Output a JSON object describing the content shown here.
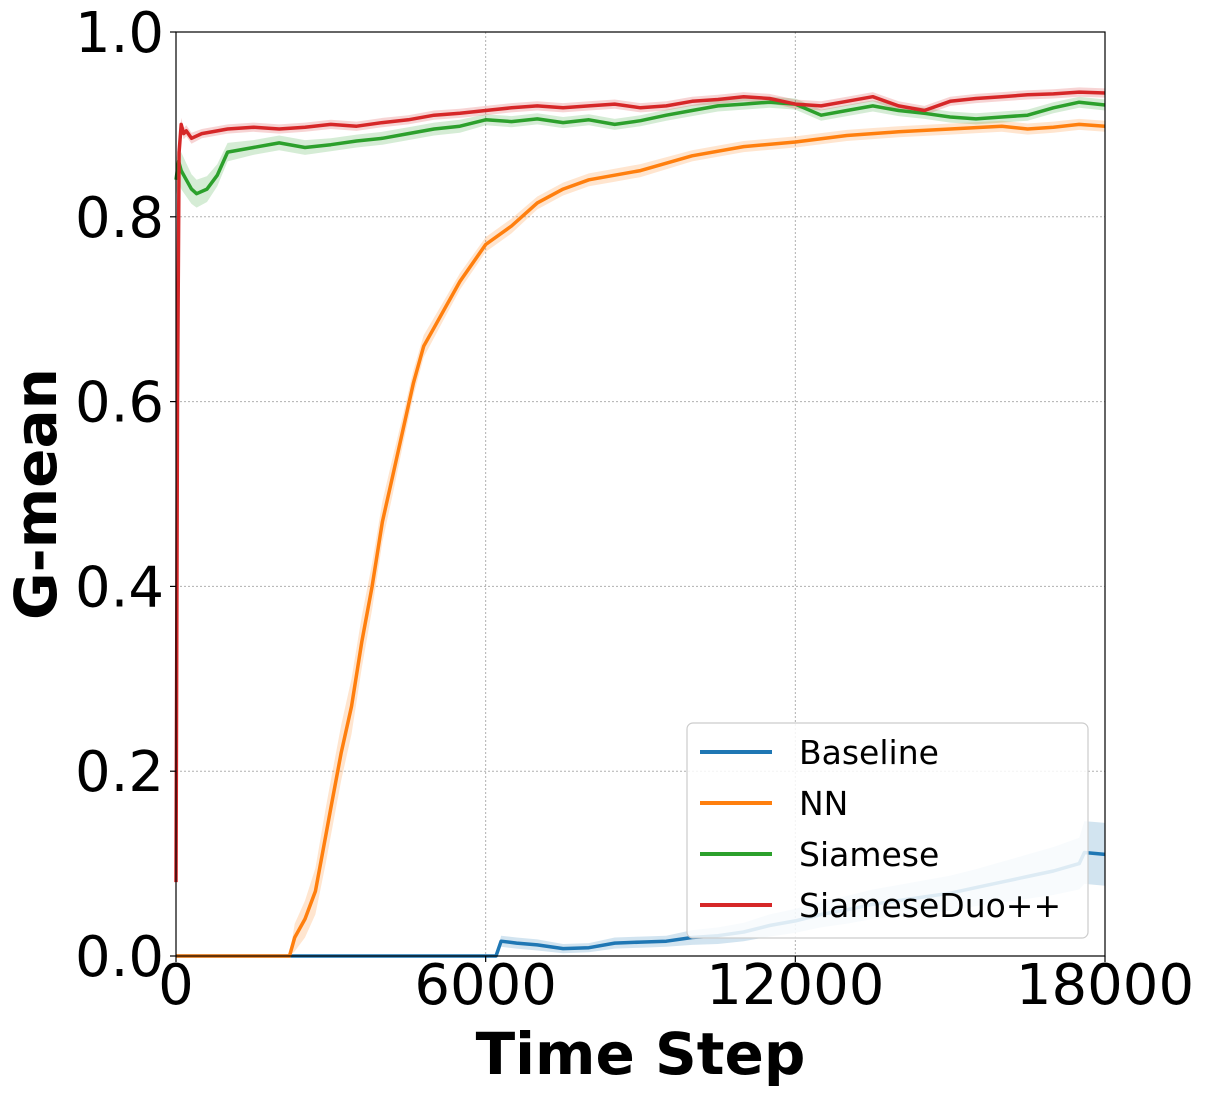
{
  "chart_data": {
    "type": "line",
    "xlabel": "Time Step",
    "ylabel": "G-mean",
    "xlim": [
      0,
      18000
    ],
    "ylim": [
      0.0,
      1.0
    ],
    "xticks": [
      0,
      6000,
      12000,
      18000
    ],
    "xtick_labels": [
      "0",
      "6000",
      "12000",
      "18000"
    ],
    "yticks": [
      0.0,
      0.2,
      0.4,
      0.6,
      0.8,
      1.0
    ],
    "ytick_labels": [
      "0.0",
      "0.2",
      "0.4",
      "0.6",
      "0.8",
      "1.0"
    ],
    "grid": true,
    "legend_position": "lower-right",
    "series": [
      {
        "name": "Baseline",
        "color": "#1f77b4",
        "x": [
          0,
          6200,
          6300,
          6600,
          7000,
          7500,
          8000,
          8500,
          9000,
          9500,
          10000,
          10500,
          11000,
          11500,
          12000,
          12500,
          13000,
          13500,
          14000,
          14500,
          15000,
          15500,
          16000,
          16500,
          17000,
          17500,
          17600,
          18000
        ],
        "y": [
          0.0,
          0.0,
          0.016,
          0.014,
          0.012,
          0.008,
          0.009,
          0.014,
          0.015,
          0.016,
          0.02,
          0.022,
          0.026,
          0.033,
          0.038,
          0.045,
          0.05,
          0.056,
          0.06,
          0.064,
          0.068,
          0.074,
          0.08,
          0.086,
          0.092,
          0.1,
          0.112,
          0.11
        ],
        "band": [
          0.0,
          0.0,
          0.006,
          0.006,
          0.006,
          0.005,
          0.005,
          0.006,
          0.006,
          0.006,
          0.008,
          0.009,
          0.01,
          0.012,
          0.013,
          0.014,
          0.015,
          0.016,
          0.017,
          0.018,
          0.019,
          0.02,
          0.022,
          0.024,
          0.026,
          0.028,
          0.034,
          0.034
        ]
      },
      {
        "name": "NN",
        "color": "#ff7f0e",
        "x": [
          0,
          2200,
          2300,
          2500,
          2700,
          2900,
          3000,
          3200,
          3400,
          3600,
          3800,
          4000,
          4200,
          4400,
          4600,
          4800,
          5000,
          5200,
          5500,
          6000,
          6500,
          7000,
          7500,
          8000,
          8500,
          9000,
          10000,
          11000,
          12000,
          13000,
          14000,
          15000,
          16000,
          16500,
          17000,
          17500,
          18000
        ],
        "y": [
          0.0,
          0.0,
          0.02,
          0.04,
          0.07,
          0.13,
          0.16,
          0.22,
          0.27,
          0.34,
          0.4,
          0.47,
          0.52,
          0.57,
          0.62,
          0.66,
          0.68,
          0.7,
          0.73,
          0.77,
          0.79,
          0.815,
          0.83,
          0.84,
          0.845,
          0.85,
          0.866,
          0.876,
          0.881,
          0.888,
          0.892,
          0.895,
          0.898,
          0.895,
          0.897,
          0.9,
          0.898
        ],
        "band": [
          0.0,
          0.0,
          0.015,
          0.02,
          0.025,
          0.03,
          0.03,
          0.03,
          0.03,
          0.028,
          0.025,
          0.022,
          0.02,
          0.016,
          0.014,
          0.012,
          0.011,
          0.01,
          0.009,
          0.008,
          0.008,
          0.007,
          0.007,
          0.007,
          0.007,
          0.007,
          0.006,
          0.006,
          0.006,
          0.006,
          0.006,
          0.006,
          0.006,
          0.006,
          0.006,
          0.006,
          0.006
        ]
      },
      {
        "name": "Siamese",
        "color": "#2ca02c",
        "x": [
          0,
          50,
          100,
          200,
          300,
          400,
          600,
          800,
          1000,
          1500,
          2000,
          2500,
          3000,
          3500,
          4000,
          4500,
          5000,
          5500,
          6000,
          6500,
          7000,
          7500,
          8000,
          8500,
          9000,
          9500,
          10000,
          10500,
          11000,
          11500,
          12000,
          12500,
          13000,
          13500,
          14000,
          14500,
          15000,
          15500,
          16000,
          16500,
          17000,
          17500,
          18000
        ],
        "y": [
          0.84,
          0.86,
          0.85,
          0.84,
          0.83,
          0.825,
          0.83,
          0.845,
          0.87,
          0.875,
          0.88,
          0.875,
          0.878,
          0.882,
          0.885,
          0.89,
          0.895,
          0.898,
          0.905,
          0.903,
          0.906,
          0.902,
          0.905,
          0.9,
          0.904,
          0.91,
          0.915,
          0.92,
          0.922,
          0.924,
          0.922,
          0.91,
          0.915,
          0.92,
          0.915,
          0.912,
          0.908,
          0.906,
          0.908,
          0.91,
          0.918,
          0.924,
          0.921
        ],
        "band": [
          0.02,
          0.02,
          0.02,
          0.018,
          0.016,
          0.015,
          0.014,
          0.012,
          0.01,
          0.008,
          0.008,
          0.008,
          0.007,
          0.007,
          0.007,
          0.007,
          0.007,
          0.007,
          0.006,
          0.006,
          0.006,
          0.006,
          0.006,
          0.006,
          0.006,
          0.006,
          0.006,
          0.006,
          0.006,
          0.006,
          0.006,
          0.006,
          0.006,
          0.006,
          0.006,
          0.006,
          0.006,
          0.006,
          0.006,
          0.006,
          0.006,
          0.006,
          0.006
        ]
      },
      {
        "name": "SiameseDuo++",
        "color": "#d62728",
        "x": [
          0,
          30,
          60,
          100,
          150,
          200,
          300,
          500,
          800,
          1000,
          1500,
          2000,
          2500,
          3000,
          3500,
          4000,
          4500,
          5000,
          5500,
          6000,
          6500,
          7000,
          7500,
          8000,
          8500,
          9000,
          9500,
          10000,
          10500,
          11000,
          11500,
          12000,
          12500,
          13000,
          13500,
          14000,
          14500,
          15000,
          15500,
          16000,
          16500,
          17000,
          17500,
          18000
        ],
        "y": [
          0.08,
          0.6,
          0.87,
          0.9,
          0.89,
          0.893,
          0.885,
          0.89,
          0.893,
          0.895,
          0.897,
          0.895,
          0.897,
          0.9,
          0.898,
          0.902,
          0.905,
          0.91,
          0.912,
          0.915,
          0.918,
          0.92,
          0.918,
          0.92,
          0.922,
          0.918,
          0.92,
          0.925,
          0.927,
          0.93,
          0.928,
          0.922,
          0.92,
          0.925,
          0.93,
          0.92,
          0.915,
          0.925,
          0.928,
          0.93,
          0.932,
          0.933,
          0.935,
          0.934
        ],
        "band": [
          0.01,
          0.01,
          0.008,
          0.007,
          0.006,
          0.006,
          0.006,
          0.005,
          0.005,
          0.005,
          0.005,
          0.005,
          0.005,
          0.005,
          0.005,
          0.005,
          0.005,
          0.005,
          0.005,
          0.005,
          0.005,
          0.005,
          0.005,
          0.005,
          0.005,
          0.005,
          0.005,
          0.005,
          0.005,
          0.005,
          0.005,
          0.005,
          0.005,
          0.005,
          0.005,
          0.005,
          0.005,
          0.005,
          0.005,
          0.005,
          0.005,
          0.005,
          0.005,
          0.005
        ]
      }
    ]
  }
}
